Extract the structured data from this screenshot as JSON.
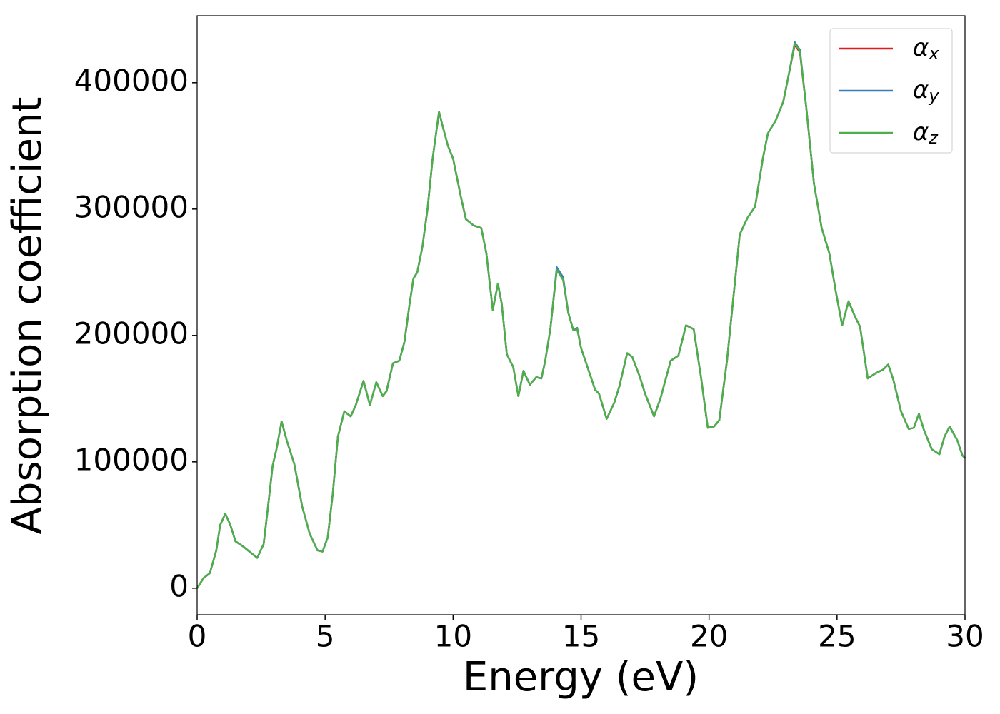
{
  "chart_data": {
    "type": "line",
    "xlabel": "Energy (eV)",
    "ylabel": "Absorption coefficient",
    "xlim": [
      0,
      30
    ],
    "ylim": [
      -21000,
      453000
    ],
    "xticks": [
      0,
      5,
      10,
      15,
      20,
      25,
      30
    ],
    "yticks": [
      0,
      100000,
      200000,
      300000,
      400000
    ],
    "legend": "upper right",
    "x": [
      0,
      0.25,
      0.5,
      0.75,
      0.9,
      1.1,
      1.3,
      1.5,
      1.8,
      2.1,
      2.35,
      2.6,
      2.8,
      2.95,
      3.1,
      3.3,
      3.5,
      3.8,
      4.1,
      4.4,
      4.7,
      4.9,
      5.1,
      5.3,
      5.5,
      5.75,
      6.0,
      6.2,
      6.5,
      6.75,
      7.0,
      7.25,
      7.4,
      7.65,
      7.9,
      8.1,
      8.3,
      8.45,
      8.6,
      8.8,
      9.0,
      9.2,
      9.45,
      9.6,
      9.8,
      10.0,
      10.3,
      10.5,
      10.8,
      11.1,
      11.3,
      11.55,
      11.75,
      11.9,
      12.1,
      12.35,
      12.55,
      12.75,
      13.0,
      13.25,
      13.45,
      13.6,
      13.8,
      14.05,
      14.3,
      14.5,
      14.7,
      14.85,
      15.0,
      15.3,
      15.55,
      15.7,
      16.0,
      16.3,
      16.5,
      16.8,
      17.0,
      17.3,
      17.5,
      17.85,
      18.1,
      18.5,
      18.8,
      19.1,
      19.4,
      19.7,
      19.95,
      20.2,
      20.4,
      20.7,
      20.95,
      21.2,
      21.5,
      21.8,
      22.1,
      22.3,
      22.6,
      22.9,
      23.1,
      23.35,
      23.55,
      23.8,
      24.1,
      24.4,
      24.7,
      24.95,
      25.2,
      25.45,
      25.7,
      25.9,
      26.2,
      26.5,
      26.8,
      27.0,
      27.2,
      27.5,
      27.8,
      28.0,
      28.2,
      28.4,
      28.7,
      29.0,
      29.2,
      29.4,
      29.7,
      29.9,
      30.0
    ],
    "series": [
      {
        "name": "αx",
        "color": "#e41a1c",
        "values": [
          0,
          8000,
          12000,
          30000,
          50000,
          59000,
          50000,
          37000,
          33000,
          28000,
          24000,
          35000,
          70000,
          97000,
          110000,
          132000,
          117000,
          98000,
          65000,
          43000,
          30000,
          29000,
          40000,
          75000,
          120000,
          140000,
          136000,
          145000,
          164000,
          145000,
          163000,
          152000,
          156000,
          178000,
          180000,
          195000,
          225000,
          245000,
          250000,
          270000,
          300000,
          340000,
          377000,
          365000,
          350000,
          340000,
          310000,
          292000,
          287000,
          285000,
          265000,
          220000,
          241000,
          225000,
          185000,
          175000,
          152000,
          172000,
          161000,
          167000,
          166000,
          180000,
          205000,
          252000,
          244000,
          218000,
          204000,
          205000,
          190000,
          172000,
          157000,
          154000,
          134000,
          147000,
          160000,
          186000,
          183000,
          167000,
          154000,
          136000,
          150000,
          180000,
          184000,
          208000,
          205000,
          165000,
          127000,
          128000,
          133000,
          180000,
          230000,
          280000,
          293000,
          302000,
          340000,
          360000,
          370000,
          385000,
          405000,
          430000,
          424000,
          380000,
          320000,
          285000,
          265000,
          235000,
          208000,
          227000,
          215000,
          207000,
          166000,
          170000,
          173000,
          177000,
          165000,
          140000,
          126000,
          127000,
          138000,
          125000,
          110000,
          106000,
          120000,
          128000,
          117000,
          105000,
          103000
        ]
      },
      {
        "name": "αy",
        "color": "#377eb8",
        "values": [
          0,
          8000,
          12000,
          30000,
          50000,
          59000,
          50000,
          37000,
          33000,
          28000,
          24000,
          35000,
          70000,
          97000,
          110000,
          132000,
          117000,
          98000,
          65000,
          43000,
          30000,
          29000,
          40000,
          75000,
          120000,
          140000,
          136000,
          145000,
          164000,
          145000,
          163000,
          152000,
          156000,
          178000,
          180000,
          195000,
          225000,
          245000,
          250000,
          270000,
          300000,
          340000,
          377000,
          365000,
          350000,
          340000,
          310000,
          292000,
          287000,
          285000,
          265000,
          220000,
          241000,
          225000,
          185000,
          175000,
          152000,
          172000,
          161000,
          167000,
          166000,
          180000,
          205000,
          254000,
          246000,
          218000,
          204000,
          206000,
          190000,
          172000,
          157000,
          154000,
          134000,
          147000,
          160000,
          186000,
          183000,
          167000,
          154000,
          136000,
          150000,
          180000,
          184000,
          208000,
          205000,
          165000,
          127000,
          128000,
          133000,
          180000,
          230000,
          280000,
          293000,
          302000,
          340000,
          360000,
          370000,
          385000,
          405000,
          432000,
          426000,
          380000,
          320000,
          285000,
          265000,
          235000,
          208000,
          227000,
          215000,
          207000,
          166000,
          170000,
          173000,
          177000,
          165000,
          140000,
          126000,
          127000,
          138000,
          125000,
          110000,
          106000,
          120000,
          128000,
          117000,
          105000,
          103000
        ]
      },
      {
        "name": "αz",
        "color": "#4daf4a",
        "values": [
          0,
          8000,
          12000,
          30000,
          50000,
          59000,
          50000,
          37000,
          33000,
          28000,
          24000,
          35000,
          70000,
          97000,
          110000,
          132000,
          117000,
          98000,
          65000,
          43000,
          30000,
          29000,
          40000,
          75000,
          120000,
          140000,
          136000,
          145000,
          164000,
          145000,
          163000,
          152000,
          156000,
          178000,
          180000,
          195000,
          225000,
          245000,
          250000,
          270000,
          300000,
          340000,
          377000,
          365000,
          350000,
          340000,
          310000,
          292000,
          287000,
          285000,
          265000,
          220000,
          241000,
          225000,
          185000,
          175000,
          152000,
          172000,
          161000,
          167000,
          166000,
          180000,
          205000,
          252000,
          244000,
          218000,
          204000,
          205000,
          190000,
          172000,
          157000,
          154000,
          134000,
          147000,
          160000,
          186000,
          183000,
          167000,
          154000,
          136000,
          150000,
          180000,
          184000,
          208000,
          205000,
          165000,
          127000,
          128000,
          133000,
          180000,
          230000,
          280000,
          293000,
          302000,
          340000,
          360000,
          370000,
          385000,
          405000,
          431000,
          425000,
          380000,
          320000,
          285000,
          265000,
          235000,
          208000,
          227000,
          215000,
          207000,
          166000,
          170000,
          173000,
          177000,
          165000,
          140000,
          126000,
          127000,
          138000,
          125000,
          110000,
          106000,
          120000,
          128000,
          117000,
          105000,
          103000
        ]
      }
    ]
  }
}
